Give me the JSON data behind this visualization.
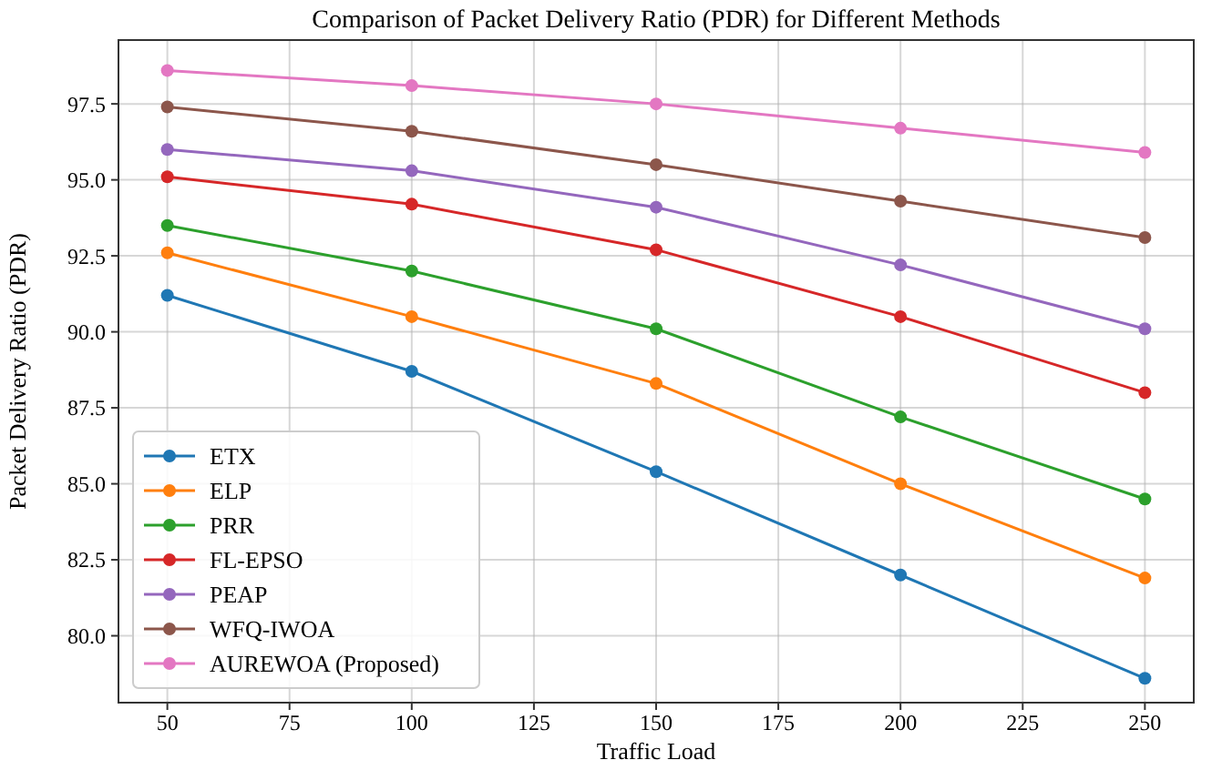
{
  "chart_data": {
    "type": "line",
    "title": "Comparison of Packet Delivery Ratio (PDR) for Different Methods",
    "xlabel": "Traffic Load",
    "ylabel": "Packet Delivery Ratio (PDR)",
    "x": [
      50,
      100,
      150,
      200,
      250
    ],
    "series": [
      {
        "name": "ETX",
        "color": "#1f77b4",
        "values": [
          91.2,
          88.7,
          85.4,
          82.0,
          78.6
        ]
      },
      {
        "name": "ELP",
        "color": "#ff7f0e",
        "values": [
          92.6,
          90.5,
          88.3,
          85.0,
          81.9
        ]
      },
      {
        "name": "PRR",
        "color": "#2ca02c",
        "values": [
          93.5,
          92.0,
          90.1,
          87.2,
          84.5
        ]
      },
      {
        "name": "FL-EPSO",
        "color": "#d62728",
        "values": [
          95.1,
          94.2,
          92.7,
          90.5,
          88.0
        ]
      },
      {
        "name": "PEAP",
        "color": "#9467bd",
        "values": [
          96.0,
          95.3,
          94.1,
          92.2,
          90.1
        ]
      },
      {
        "name": "WFQ-IWOA",
        "color": "#8c564b",
        "values": [
          97.4,
          96.6,
          95.5,
          94.3,
          93.1
        ]
      },
      {
        "name": "AUREWOA (Proposed)",
        "color": "#e377c2",
        "values": [
          98.6,
          98.1,
          97.5,
          96.7,
          95.9
        ]
      }
    ],
    "xlim": [
      40,
      260
    ],
    "xticks": [
      50,
      75,
      100,
      125,
      150,
      175,
      200,
      225,
      250
    ],
    "ylim": [
      77.8,
      99.6
    ],
    "yticks": [
      {
        "value": 80,
        "label": "80.0"
      },
      {
        "value": 82.5,
        "label": "82.5"
      },
      {
        "value": 85,
        "label": "85.0"
      },
      {
        "value": 87.5,
        "label": "87.5"
      },
      {
        "value": 90,
        "label": "90.0"
      },
      {
        "value": 92.5,
        "label": "92.5"
      },
      {
        "value": 95,
        "label": "95.0"
      },
      {
        "value": 97.5,
        "label": "97.5"
      }
    ],
    "grid": true,
    "legend": "bottom left",
    "marker": "circle",
    "line_style": "solid"
  }
}
